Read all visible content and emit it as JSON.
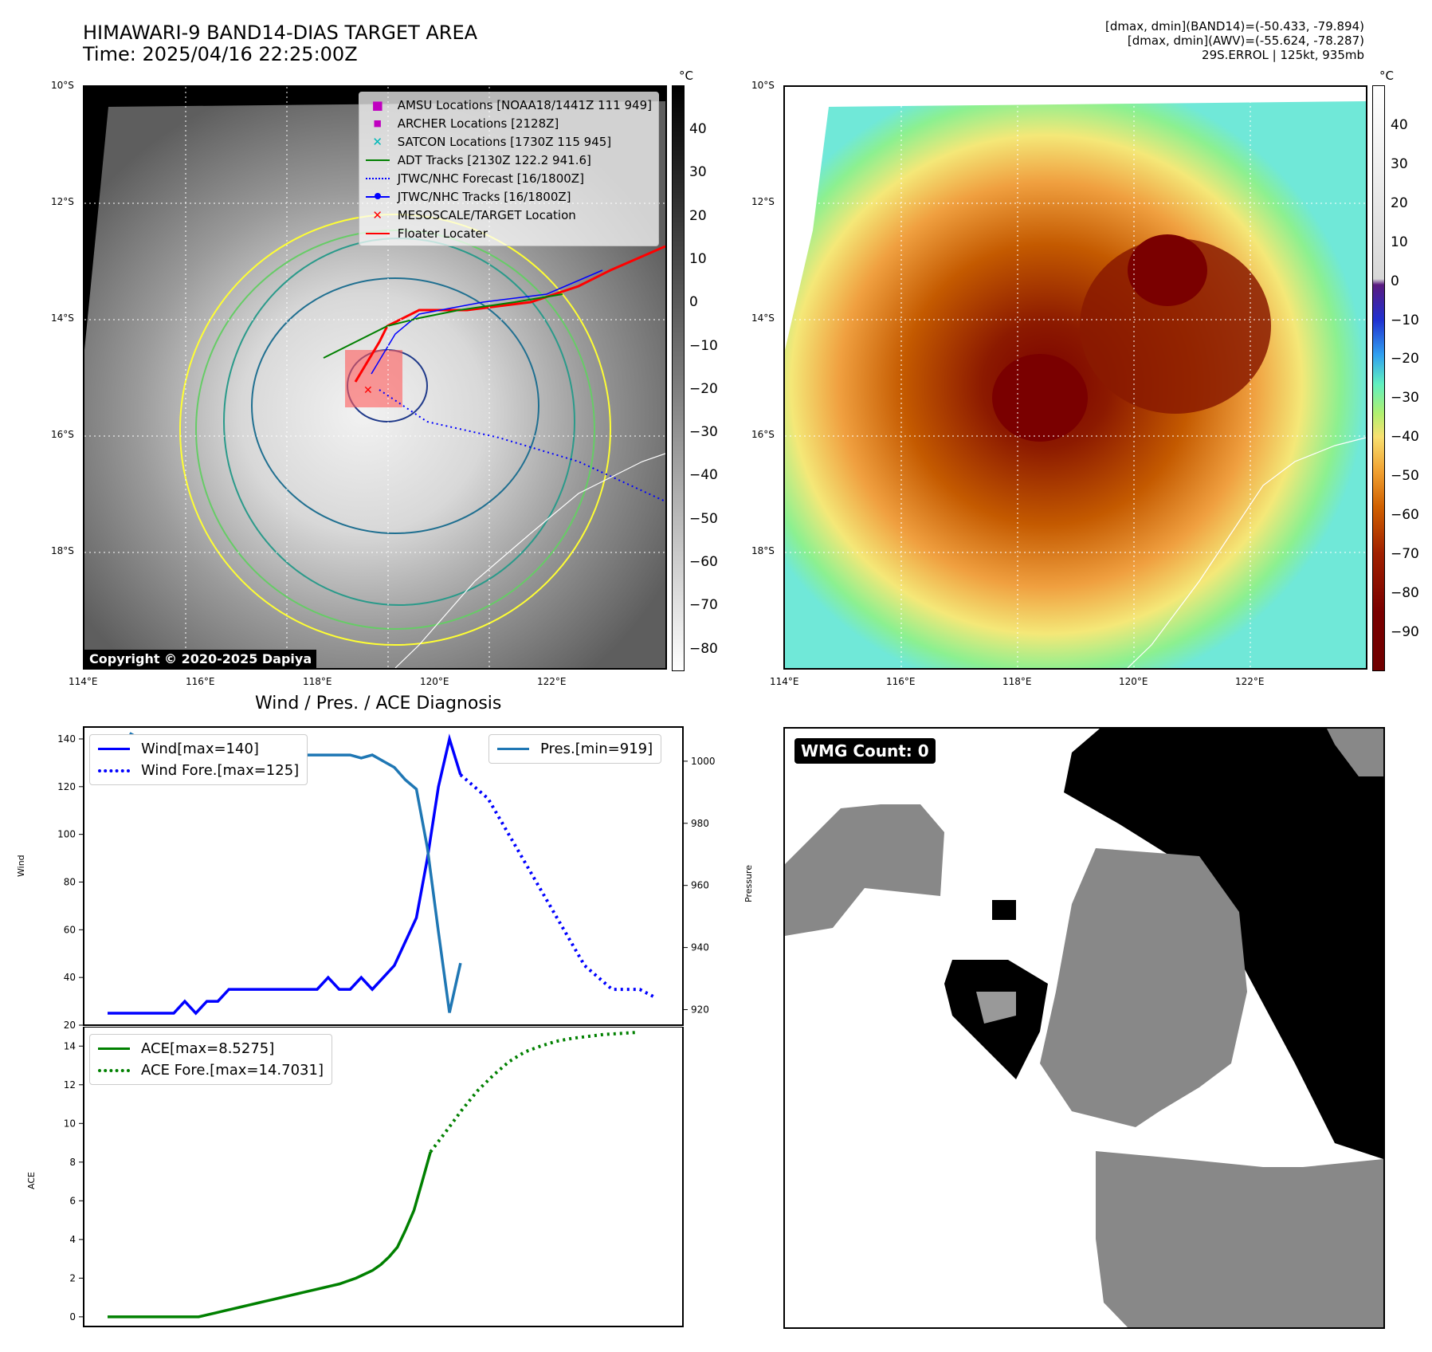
{
  "header": {
    "title_line1": "HIMAWARI-9 BAND14-DIAS TARGET AREA",
    "title_line2": "Time: 2025/04/16 22:25:00Z",
    "info_line1": "[dmax, dmin](BAND14)=(-50.433, -79.894)",
    "info_line2": "[dmax, dmin](AWV)=(-55.624, -78.287)",
    "info_line3": "29S.ERROL | 125kt, 935mb"
  },
  "map": {
    "lon_ticks": [
      "114°E",
      "116°E",
      "118°E",
      "120°E",
      "122°E"
    ],
    "lat_ticks": [
      "10°S",
      "12°S",
      "14°S",
      "16°S",
      "18°S"
    ],
    "copyright": "Copyright © 2020-2025 Dapiya",
    "colorbar_unit": "°C",
    "gray_colorbar_ticks": [
      "40",
      "30",
      "20",
      "10",
      "0",
      "−10",
      "−20",
      "−30",
      "−40",
      "−50",
      "−60",
      "−70",
      "−80"
    ],
    "color_colorbar_ticks": [
      "40",
      "30",
      "20",
      "10",
      "0",
      "−10",
      "−20",
      "−30",
      "−40",
      "−50",
      "−60",
      "−70",
      "−80",
      "−90"
    ],
    "legend": [
      {
        "label": "AMSU Locations [NOAA18/1441Z 111 949]",
        "color": "#c000c0",
        "marker": "square"
      },
      {
        "label": "ARCHER Locations [2128Z]",
        "color": "#c000c0",
        "marker": "square-small"
      },
      {
        "label": "SATCON Locations [1730Z 115 945]",
        "color": "#00b8b8",
        "marker": "x"
      },
      {
        "label": "ADT Tracks [2130Z 122.2 941.6]",
        "color": "#008000",
        "marker": "line"
      },
      {
        "label": "JTWC/NHC Forecast [16/1800Z]",
        "color": "#0000ff",
        "marker": "dotted"
      },
      {
        "label": "JTWC/NHC Tracks [16/1800Z]",
        "color": "#0000ff",
        "marker": "line-dot"
      },
      {
        "label": "MESOSCALE/TARGET Location",
        "color": "#ff0000",
        "marker": "x"
      },
      {
        "label": "Floater Locater",
        "color": "#ff0000",
        "marker": "line"
      }
    ]
  },
  "diagnosis": {
    "title": "Wind / Pres. / ACE Diagnosis",
    "wind_ylabel": "Wind",
    "pres_ylabel": "Pressure",
    "ace_ylabel": "ACE",
    "legend_wind": "Wind[max=140]",
    "legend_wind_fore": "Wind Fore.[max=125]",
    "legend_pres": "Pres.[min=919]",
    "legend_ace": "ACE[max=8.5275]",
    "legend_ace_fore": "ACE Fore.[max=14.7031]"
  },
  "wmg": {
    "label": "WMG Count: 0"
  },
  "colors": {
    "wind": "#0000ff",
    "pressure": "#1f77b4",
    "ace": "#008000"
  },
  "chart_data": [
    {
      "type": "line",
      "name": "wind-pressure",
      "ylim": [
        20,
        145
      ],
      "y2lim": [
        915,
        1011
      ],
      "wind": [
        25,
        25,
        25,
        25,
        25,
        25,
        25,
        30,
        25,
        30,
        30,
        35,
        35,
        35,
        35,
        35,
        35,
        35,
        35,
        35,
        40,
        35,
        35,
        40,
        35,
        40,
        45,
        55,
        65,
        90,
        120,
        140,
        125
      ],
      "wind_fore": [
        125,
        120,
        115,
        105,
        95,
        85,
        75,
        65,
        55,
        45,
        40,
        35,
        35,
        35,
        32
      ],
      "pressure": [
        1009,
        1007,
        1007,
        1006,
        1005,
        1003,
        1002,
        1003,
        1002,
        1002,
        1002,
        1002,
        1002,
        1002,
        1002,
        1002,
        1002,
        1002,
        1002,
        1002,
        1002,
        1001,
        1002,
        1000,
        998,
        994,
        991,
        972,
        945,
        919,
        935
      ],
      "yticks": [
        20,
        40,
        60,
        80,
        100,
        120,
        140
      ],
      "y2ticks": [
        920,
        940,
        960,
        980,
        1000
      ]
    },
    {
      "type": "line",
      "name": "ace",
      "ylim": [
        -0.5,
        15
      ],
      "ace": [
        0,
        0,
        0,
        0,
        0,
        0,
        0,
        0,
        0,
        0,
        0,
        0,
        0.1,
        0.2,
        0.3,
        0.4,
        0.5,
        0.6,
        0.7,
        0.8,
        0.9,
        1.0,
        1.1,
        1.2,
        1.3,
        1.4,
        1.5,
        1.6,
        1.7,
        1.85,
        2.0,
        2.2,
        2.4,
        2.7,
        3.1,
        3.6,
        4.5,
        5.5,
        7.0,
        8.5275
      ],
      "ace_fore": [
        8.5275,
        9.6,
        10.7,
        11.7,
        12.5,
        13.2,
        13.7,
        14.0,
        14.25,
        14.4,
        14.5,
        14.6,
        14.65,
        14.7031
      ],
      "yticks": [
        0,
        2,
        4,
        6,
        8,
        10,
        12,
        14
      ]
    }
  ]
}
